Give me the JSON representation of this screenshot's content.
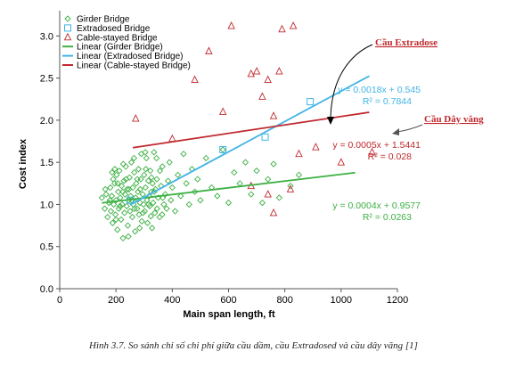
{
  "chart_data": {
    "type": "scatter",
    "title": "",
    "xlabel": "Main span length, ft",
    "ylabel": "Cost index",
    "xlim": [
      0,
      1200
    ],
    "ylim": [
      0,
      3.3
    ],
    "xticks": [
      "0",
      "200",
      "400",
      "600",
      "800",
      "1000",
      "1200"
    ],
    "yticks": [
      "0.0",
      "0.5",
      "1.0",
      "1.5",
      "2.0",
      "2.5",
      "3.0"
    ],
    "grid": false,
    "legend_position": "top-left",
    "series": [
      {
        "name": "Girder Bridge",
        "marker": "diamond",
        "color": "#3cb043",
        "points": [
          [
            150,
            1.08
          ],
          [
            160,
            0.95
          ],
          [
            165,
            1.12
          ],
          [
            170,
            0.85
          ],
          [
            175,
            1.02
          ],
          [
            180,
            1.2
          ],
          [
            182,
            0.92
          ],
          [
            185,
            1.1
          ],
          [
            188,
            0.78
          ],
          [
            190,
            1.3
          ],
          [
            192,
            1.0
          ],
          [
            195,
            1.25
          ],
          [
            198,
            0.88
          ],
          [
            200,
            1.05
          ],
          [
            202,
            1.35
          ],
          [
            205,
            0.7
          ],
          [
            208,
            1.15
          ],
          [
            210,
            0.95
          ],
          [
            212,
            1.4
          ],
          [
            215,
            1.08
          ],
          [
            218,
            0.82
          ],
          [
            220,
            1.22
          ],
          [
            222,
            1.0
          ],
          [
            225,
            0.6
          ],
          [
            228,
            1.28
          ],
          [
            230,
            0.9
          ],
          [
            232,
            1.12
          ],
          [
            235,
            1.45
          ],
          [
            238,
            0.98
          ],
          [
            240,
            1.18
          ],
          [
            242,
            0.75
          ],
          [
            245,
            1.05
          ],
          [
            248,
            1.32
          ],
          [
            250,
            0.92
          ],
          [
            252,
            1.1
          ],
          [
            255,
            1.5
          ],
          [
            258,
            0.85
          ],
          [
            260,
            1.2
          ],
          [
            262,
            1.0
          ],
          [
            265,
            1.38
          ],
          [
            268,
            0.68
          ],
          [
            270,
            1.08
          ],
          [
            272,
            1.25
          ],
          [
            275,
            0.95
          ],
          [
            278,
            1.15
          ],
          [
            280,
            1.42
          ],
          [
            282,
            0.88
          ],
          [
            285,
            1.02
          ],
          [
            288,
            1.3
          ],
          [
            290,
            1.6
          ],
          [
            292,
            0.8
          ],
          [
            295,
            1.12
          ],
          [
            298,
            1.0
          ],
          [
            300,
            1.35
          ],
          [
            302,
            0.92
          ],
          [
            305,
            1.2
          ],
          [
            308,
            1.55
          ],
          [
            310,
            1.05
          ],
          [
            312,
            0.78
          ],
          [
            315,
            1.28
          ],
          [
            318,
            1.1
          ],
          [
            320,
            0.98
          ],
          [
            322,
            1.4
          ],
          [
            325,
            1.15
          ],
          [
            328,
            0.72
          ],
          [
            330,
            1.25
          ],
          [
            332,
            1.02
          ],
          [
            335,
            1.62
          ],
          [
            338,
            0.9
          ],
          [
            340,
            1.18
          ],
          [
            345,
            1.3
          ],
          [
            350,
            1.08
          ],
          [
            355,
            0.85
          ],
          [
            360,
            1.22
          ],
          [
            365,
            1.45
          ],
          [
            370,
            1.0
          ],
          [
            375,
            1.12
          ],
          [
            380,
            0.95
          ],
          [
            385,
            1.28
          ],
          [
            390,
            1.5
          ],
          [
            395,
            1.05
          ],
          [
            400,
            1.2
          ],
          [
            410,
            0.92
          ],
          [
            420,
            1.35
          ],
          [
            430,
            1.1
          ],
          [
            440,
            1.6
          ],
          [
            450,
            1.25
          ],
          [
            460,
            1.0
          ],
          [
            470,
            1.42
          ],
          [
            480,
            1.15
          ],
          [
            490,
            1.3
          ],
          [
            500,
            1.05
          ],
          [
            520,
            1.55
          ],
          [
            540,
            1.2
          ],
          [
            560,
            1.1
          ],
          [
            580,
            1.65
          ],
          [
            600,
            1.02
          ],
          [
            620,
            1.38
          ],
          [
            640,
            1.25
          ],
          [
            660,
            1.5
          ],
          [
            680,
            1.12
          ],
          [
            700,
            1.4
          ],
          [
            720,
            1.02
          ],
          [
            740,
            1.3
          ],
          [
            760,
            1.48
          ],
          [
            780,
            1.08
          ],
          [
            820,
            1.22
          ],
          [
            850,
            1.35
          ],
          [
            162,
            1.18
          ],
          [
            178,
            1.05
          ],
          [
            196,
            1.42
          ],
          [
            206,
            1.25
          ],
          [
            214,
            0.98
          ],
          [
            224,
            1.15
          ],
          [
            236,
            1.3
          ],
          [
            246,
            1.18
          ],
          [
            256,
            1.05
          ],
          [
            266,
            0.95
          ],
          [
            276,
            1.3
          ],
          [
            286,
            1.18
          ],
          [
            296,
            0.9
          ],
          [
            306,
            1.42
          ],
          [
            316,
            1.0
          ],
          [
            326,
            1.32
          ],
          [
            336,
            1.15
          ],
          [
            346,
            0.95
          ],
          [
            356,
            1.4
          ],
          [
            366,
            1.08
          ],
          [
            186,
            1.38
          ],
          [
            200,
            0.82
          ],
          [
            226,
            1.48
          ],
          [
            244,
            0.62
          ],
          [
            264,
            1.55
          ],
          [
            284,
            0.72
          ],
          [
            304,
            1.62
          ],
          [
            324,
            0.86
          ],
          [
            344,
            1.55
          ],
          [
            364,
            0.88
          ]
        ]
      },
      {
        "name": "Extradosed Bridge",
        "marker": "square",
        "color": "#41b4e6",
        "points": [
          [
            250,
            1.05
          ],
          [
            580,
            1.65
          ],
          [
            730,
            1.8
          ],
          [
            890,
            2.22
          ]
        ]
      },
      {
        "name": "Cable-stayed Bridge",
        "marker": "triangle",
        "color": "#c0282d",
        "points": [
          [
            270,
            2.02
          ],
          [
            400,
            1.78
          ],
          [
            480,
            2.48
          ],
          [
            530,
            2.82
          ],
          [
            580,
            2.1
          ],
          [
            610,
            3.12
          ],
          [
            680,
            2.55
          ],
          [
            700,
            2.58
          ],
          [
            720,
            2.28
          ],
          [
            740,
            2.48
          ],
          [
            760,
            2.05
          ],
          [
            780,
            2.58
          ],
          [
            790,
            3.08
          ],
          [
            830,
            3.12
          ],
          [
            680,
            1.22
          ],
          [
            740,
            1.12
          ],
          [
            760,
            0.9
          ],
          [
            820,
            1.18
          ],
          [
            850,
            1.6
          ],
          [
            910,
            1.68
          ],
          [
            1000,
            1.5
          ],
          [
            1110,
            1.62
          ]
        ]
      },
      {
        "name": "Linear (Girder Bridge)",
        "type": "line",
        "color": "#3cb043",
        "x_range": [
          150,
          1050
        ],
        "slope": 0.0004,
        "intercept": 0.9577,
        "equation": "y = 0.0004x + 0.9577",
        "r2": "R² = 0.0263"
      },
      {
        "name": "Linear (Extradosed Bridge)",
        "type": "line",
        "color": "#41b4e6",
        "x_range": [
          250,
          1100
        ],
        "slope": 0.0018,
        "intercept": 0.545,
        "equation": "y = 0.0018x + 0.545",
        "r2": "R² = 0.7844"
      },
      {
        "name": "Linear (Cable-stayed Bridge)",
        "type": "line",
        "color": "#c0282d",
        "x_range": [
          260,
          1100
        ],
        "slope": 0.0005,
        "intercept": 1.5441,
        "equation": "y = 0.0005x + 1.5441",
        "r2": "R² = 0.028"
      }
    ],
    "annotations": [
      {
        "text": "Cầu Extradose",
        "color": "#c0282d",
        "points_to": "Linear (Extradosed Bridge)"
      },
      {
        "text": "Cầu Dây văng",
        "color": "#c0282d",
        "points_to": "Linear (Cable-stayed Bridge)"
      }
    ]
  },
  "caption": "Hình 3.7. So sánh chỉ số chi phí giữa cầu dầm, cầu Extradosed và cầu dây văng [1]"
}
